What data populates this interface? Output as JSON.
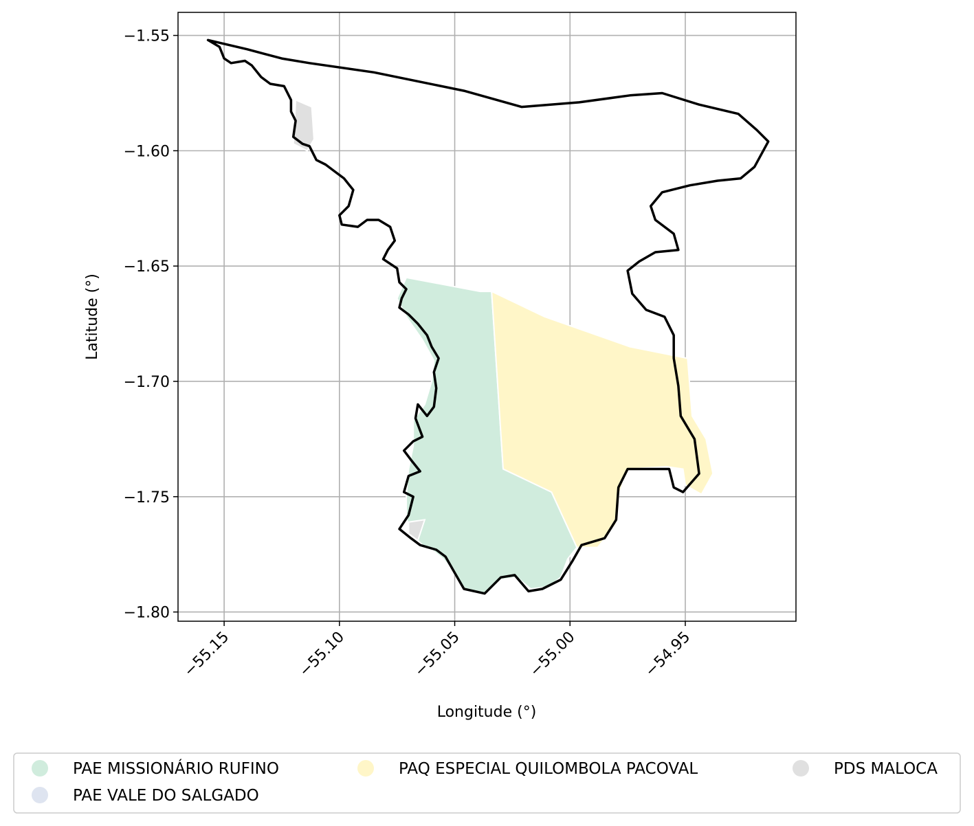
{
  "chart_data": {
    "type": "map",
    "xlabel": "Longitude (°)",
    "ylabel": "Latitude (°)",
    "xlim": [
      -55.17,
      -54.902
    ],
    "ylim": [
      -1.804,
      -1.54
    ],
    "grid": true,
    "x_ticks": [
      {
        "value": -55.15,
        "label": "−55.15"
      },
      {
        "value": -55.1,
        "label": "−55.10"
      },
      {
        "value": -55.05,
        "label": "−55.05"
      },
      {
        "value": -55.0,
        "label": "−55.00"
      },
      {
        "value": -54.95,
        "label": "−54.95"
      }
    ],
    "y_ticks": [
      {
        "value": -1.55,
        "label": "−1.55"
      },
      {
        "value": -1.6,
        "label": "−1.60"
      },
      {
        "value": -1.65,
        "label": "−1.65"
      },
      {
        "value": -1.7,
        "label": "−1.70"
      },
      {
        "value": -1.75,
        "label": "−1.75"
      },
      {
        "value": -1.8,
        "label": "−1.80"
      }
    ],
    "legend_placement": "bottom",
    "legend": [
      {
        "name": "PAE MISSIONÁRIO RUFINO",
        "color": "#d0ecdd"
      },
      {
        "name": "PAQ ESPECIAL QUILOMBOLA PACOVAL",
        "color": "#fff6c8"
      },
      {
        "name": "PDS MALOCA",
        "color": "#e0e0e0"
      },
      {
        "name": "PAE VALE DO SALGADO",
        "color": "#dee4f0"
      }
    ],
    "regions": [
      {
        "name": "PAE MISSIONÁRIO RUFINO",
        "color": "#d0ecdd",
        "coords": [
          [
            -55.071,
            -1.655
          ],
          [
            -55.039,
            -1.661
          ],
          [
            -55.034,
            -1.661
          ],
          [
            -55.029,
            -1.738
          ],
          [
            -55.008,
            -1.748
          ],
          [
            -54.997,
            -1.772
          ],
          [
            -55.001,
            -1.777
          ],
          [
            -55.004,
            -1.785
          ],
          [
            -55.009,
            -1.789
          ],
          [
            -55.017,
            -1.79
          ],
          [
            -55.023,
            -1.785
          ],
          [
            -55.03,
            -1.786
          ],
          [
            -55.037,
            -1.792
          ],
          [
            -55.046,
            -1.79
          ],
          [
            -55.051,
            -1.782
          ],
          [
            -55.055,
            -1.777
          ],
          [
            -55.06,
            -1.773
          ],
          [
            -55.064,
            -1.771
          ],
          [
            -55.069,
            -1.766
          ],
          [
            -55.071,
            -1.759
          ],
          [
            -55.071,
            -1.749
          ],
          [
            -55.07,
            -1.738
          ],
          [
            -55.068,
            -1.728
          ],
          [
            -55.068,
            -1.717
          ],
          [
            -55.063,
            -1.71
          ],
          [
            -55.06,
            -1.7
          ],
          [
            -55.059,
            -1.691
          ],
          [
            -55.064,
            -1.682
          ],
          [
            -55.071,
            -1.672
          ],
          [
            -55.075,
            -1.664
          ],
          [
            -55.071,
            -1.655
          ]
        ]
      },
      {
        "name": "PAQ ESPECIAL QUILOMBOLA PACOVAL",
        "color": "#fff6c8",
        "coords": [
          [
            -55.034,
            -1.661
          ],
          [
            -55.011,
            -1.672
          ],
          [
            -54.974,
            -1.685
          ],
          [
            -54.949,
            -1.69
          ],
          [
            -54.947,
            -1.715
          ],
          [
            -54.941,
            -1.725
          ],
          [
            -54.938,
            -1.74
          ],
          [
            -54.943,
            -1.749
          ],
          [
            -54.95,
            -1.745
          ],
          [
            -54.951,
            -1.738
          ],
          [
            -54.958,
            -1.737
          ],
          [
            -54.975,
            -1.738
          ],
          [
            -54.979,
            -1.75
          ],
          [
            -54.98,
            -1.762
          ],
          [
            -54.988,
            -1.772
          ],
          [
            -54.997,
            -1.772
          ],
          [
            -55.008,
            -1.748
          ],
          [
            -55.029,
            -1.738
          ],
          [
            -55.034,
            -1.661
          ]
        ]
      },
      {
        "name": "PDS MALOCA",
        "color": "#e0e0e0",
        "coords": [
          [
            -55.119,
            -1.578
          ],
          [
            -55.112,
            -1.581
          ],
          [
            -55.111,
            -1.595
          ],
          [
            -55.114,
            -1.6
          ],
          [
            -55.12,
            -1.597
          ],
          [
            -55.119,
            -1.578
          ]
        ]
      },
      {
        "name": "PDS MALOCA",
        "color": "#e0e0e0",
        "coords": [
          [
            -55.07,
            -1.761
          ],
          [
            -55.063,
            -1.76
          ],
          [
            -55.066,
            -1.769
          ],
          [
            -55.07,
            -1.766
          ],
          [
            -55.07,
            -1.761
          ]
        ]
      }
    ],
    "boundary": [
      [
        -55.157,
        -1.552
      ],
      [
        -55.14,
        -1.556
      ],
      [
        -55.125,
        -1.56
      ],
      [
        -55.113,
        -1.562
      ],
      [
        -55.085,
        -1.566
      ],
      [
        -55.046,
        -1.574
      ],
      [
        -55.021,
        -1.581
      ],
      [
        -54.996,
        -1.579
      ],
      [
        -54.974,
        -1.576
      ],
      [
        -54.96,
        -1.575
      ],
      [
        -54.944,
        -1.58
      ],
      [
        -54.927,
        -1.584
      ],
      [
        -54.919,
        -1.591
      ],
      [
        -54.914,
        -1.596
      ],
      [
        -54.92,
        -1.607
      ],
      [
        -54.926,
        -1.612
      ],
      [
        -54.936,
        -1.613
      ],
      [
        -54.948,
        -1.615
      ],
      [
        -54.96,
        -1.618
      ],
      [
        -54.965,
        -1.624
      ],
      [
        -54.963,
        -1.63
      ],
      [
        -54.955,
        -1.636
      ],
      [
        -54.953,
        -1.643
      ],
      [
        -54.963,
        -1.644
      ],
      [
        -54.97,
        -1.648
      ],
      [
        -54.975,
        -1.652
      ],
      [
        -54.973,
        -1.662
      ],
      [
        -54.967,
        -1.669
      ],
      [
        -54.959,
        -1.672
      ],
      [
        -54.955,
        -1.68
      ],
      [
        -54.955,
        -1.69
      ],
      [
        -54.953,
        -1.702
      ],
      [
        -54.952,
        -1.715
      ],
      [
        -54.946,
        -1.725
      ],
      [
        -54.944,
        -1.74
      ],
      [
        -54.951,
        -1.748
      ],
      [
        -54.955,
        -1.746
      ],
      [
        -54.957,
        -1.738
      ],
      [
        -54.975,
        -1.738
      ],
      [
        -54.979,
        -1.746
      ],
      [
        -54.98,
        -1.76
      ],
      [
        -54.985,
        -1.768
      ],
      [
        -54.995,
        -1.771
      ],
      [
        -54.999,
        -1.778
      ],
      [
        -55.004,
        -1.786
      ],
      [
        -55.012,
        -1.79
      ],
      [
        -55.018,
        -1.791
      ],
      [
        -55.024,
        -1.784
      ],
      [
        -55.03,
        -1.785
      ],
      [
        -55.037,
        -1.792
      ],
      [
        -55.046,
        -1.79
      ],
      [
        -55.05,
        -1.783
      ],
      [
        -55.054,
        -1.776
      ],
      [
        -55.058,
        -1.773
      ],
      [
        -55.065,
        -1.771
      ],
      [
        -55.069,
        -1.768
      ],
      [
        -55.074,
        -1.764
      ],
      [
        -55.07,
        -1.758
      ],
      [
        -55.068,
        -1.75
      ],
      [
        -55.072,
        -1.748
      ],
      [
        -55.07,
        -1.741
      ],
      [
        -55.065,
        -1.739
      ],
      [
        -55.069,
        -1.734
      ],
      [
        -55.072,
        -1.73
      ],
      [
        -55.068,
        -1.726
      ],
      [
        -55.064,
        -1.724
      ],
      [
        -55.067,
        -1.716
      ],
      [
        -55.066,
        -1.71
      ],
      [
        -55.062,
        -1.715
      ],
      [
        -55.059,
        -1.711
      ],
      [
        -55.058,
        -1.703
      ],
      [
        -55.059,
        -1.696
      ],
      [
        -55.057,
        -1.69
      ],
      [
        -55.06,
        -1.685
      ],
      [
        -55.062,
        -1.68
      ],
      [
        -55.066,
        -1.675
      ],
      [
        -55.07,
        -1.671
      ],
      [
        -55.074,
        -1.668
      ],
      [
        -55.073,
        -1.664
      ],
      [
        -55.071,
        -1.66
      ],
      [
        -55.074,
        -1.657
      ],
      [
        -55.075,
        -1.651
      ],
      [
        -55.081,
        -1.647
      ],
      [
        -55.079,
        -1.643
      ],
      [
        -55.076,
        -1.639
      ],
      [
        -55.078,
        -1.633
      ],
      [
        -55.083,
        -1.63
      ],
      [
        -55.088,
        -1.63
      ],
      [
        -55.092,
        -1.633
      ],
      [
        -55.099,
        -1.632
      ],
      [
        -55.1,
        -1.628
      ],
      [
        -55.096,
        -1.624
      ],
      [
        -55.094,
        -1.617
      ],
      [
        -55.098,
        -1.612
      ],
      [
        -55.102,
        -1.609
      ],
      [
        -55.106,
        -1.606
      ],
      [
        -55.11,
        -1.604
      ],
      [
        -55.113,
        -1.598
      ],
      [
        -55.116,
        -1.597
      ],
      [
        -55.12,
        -1.594
      ],
      [
        -55.119,
        -1.587
      ],
      [
        -55.121,
        -1.583
      ],
      [
        -55.121,
        -1.578
      ],
      [
        -55.124,
        -1.572
      ],
      [
        -55.13,
        -1.571
      ],
      [
        -55.134,
        -1.568
      ],
      [
        -55.138,
        -1.563
      ],
      [
        -55.141,
        -1.561
      ],
      [
        -55.147,
        -1.562
      ],
      [
        -55.15,
        -1.56
      ],
      [
        -55.152,
        -1.555
      ],
      [
        -55.157,
        -1.552
      ]
    ]
  }
}
